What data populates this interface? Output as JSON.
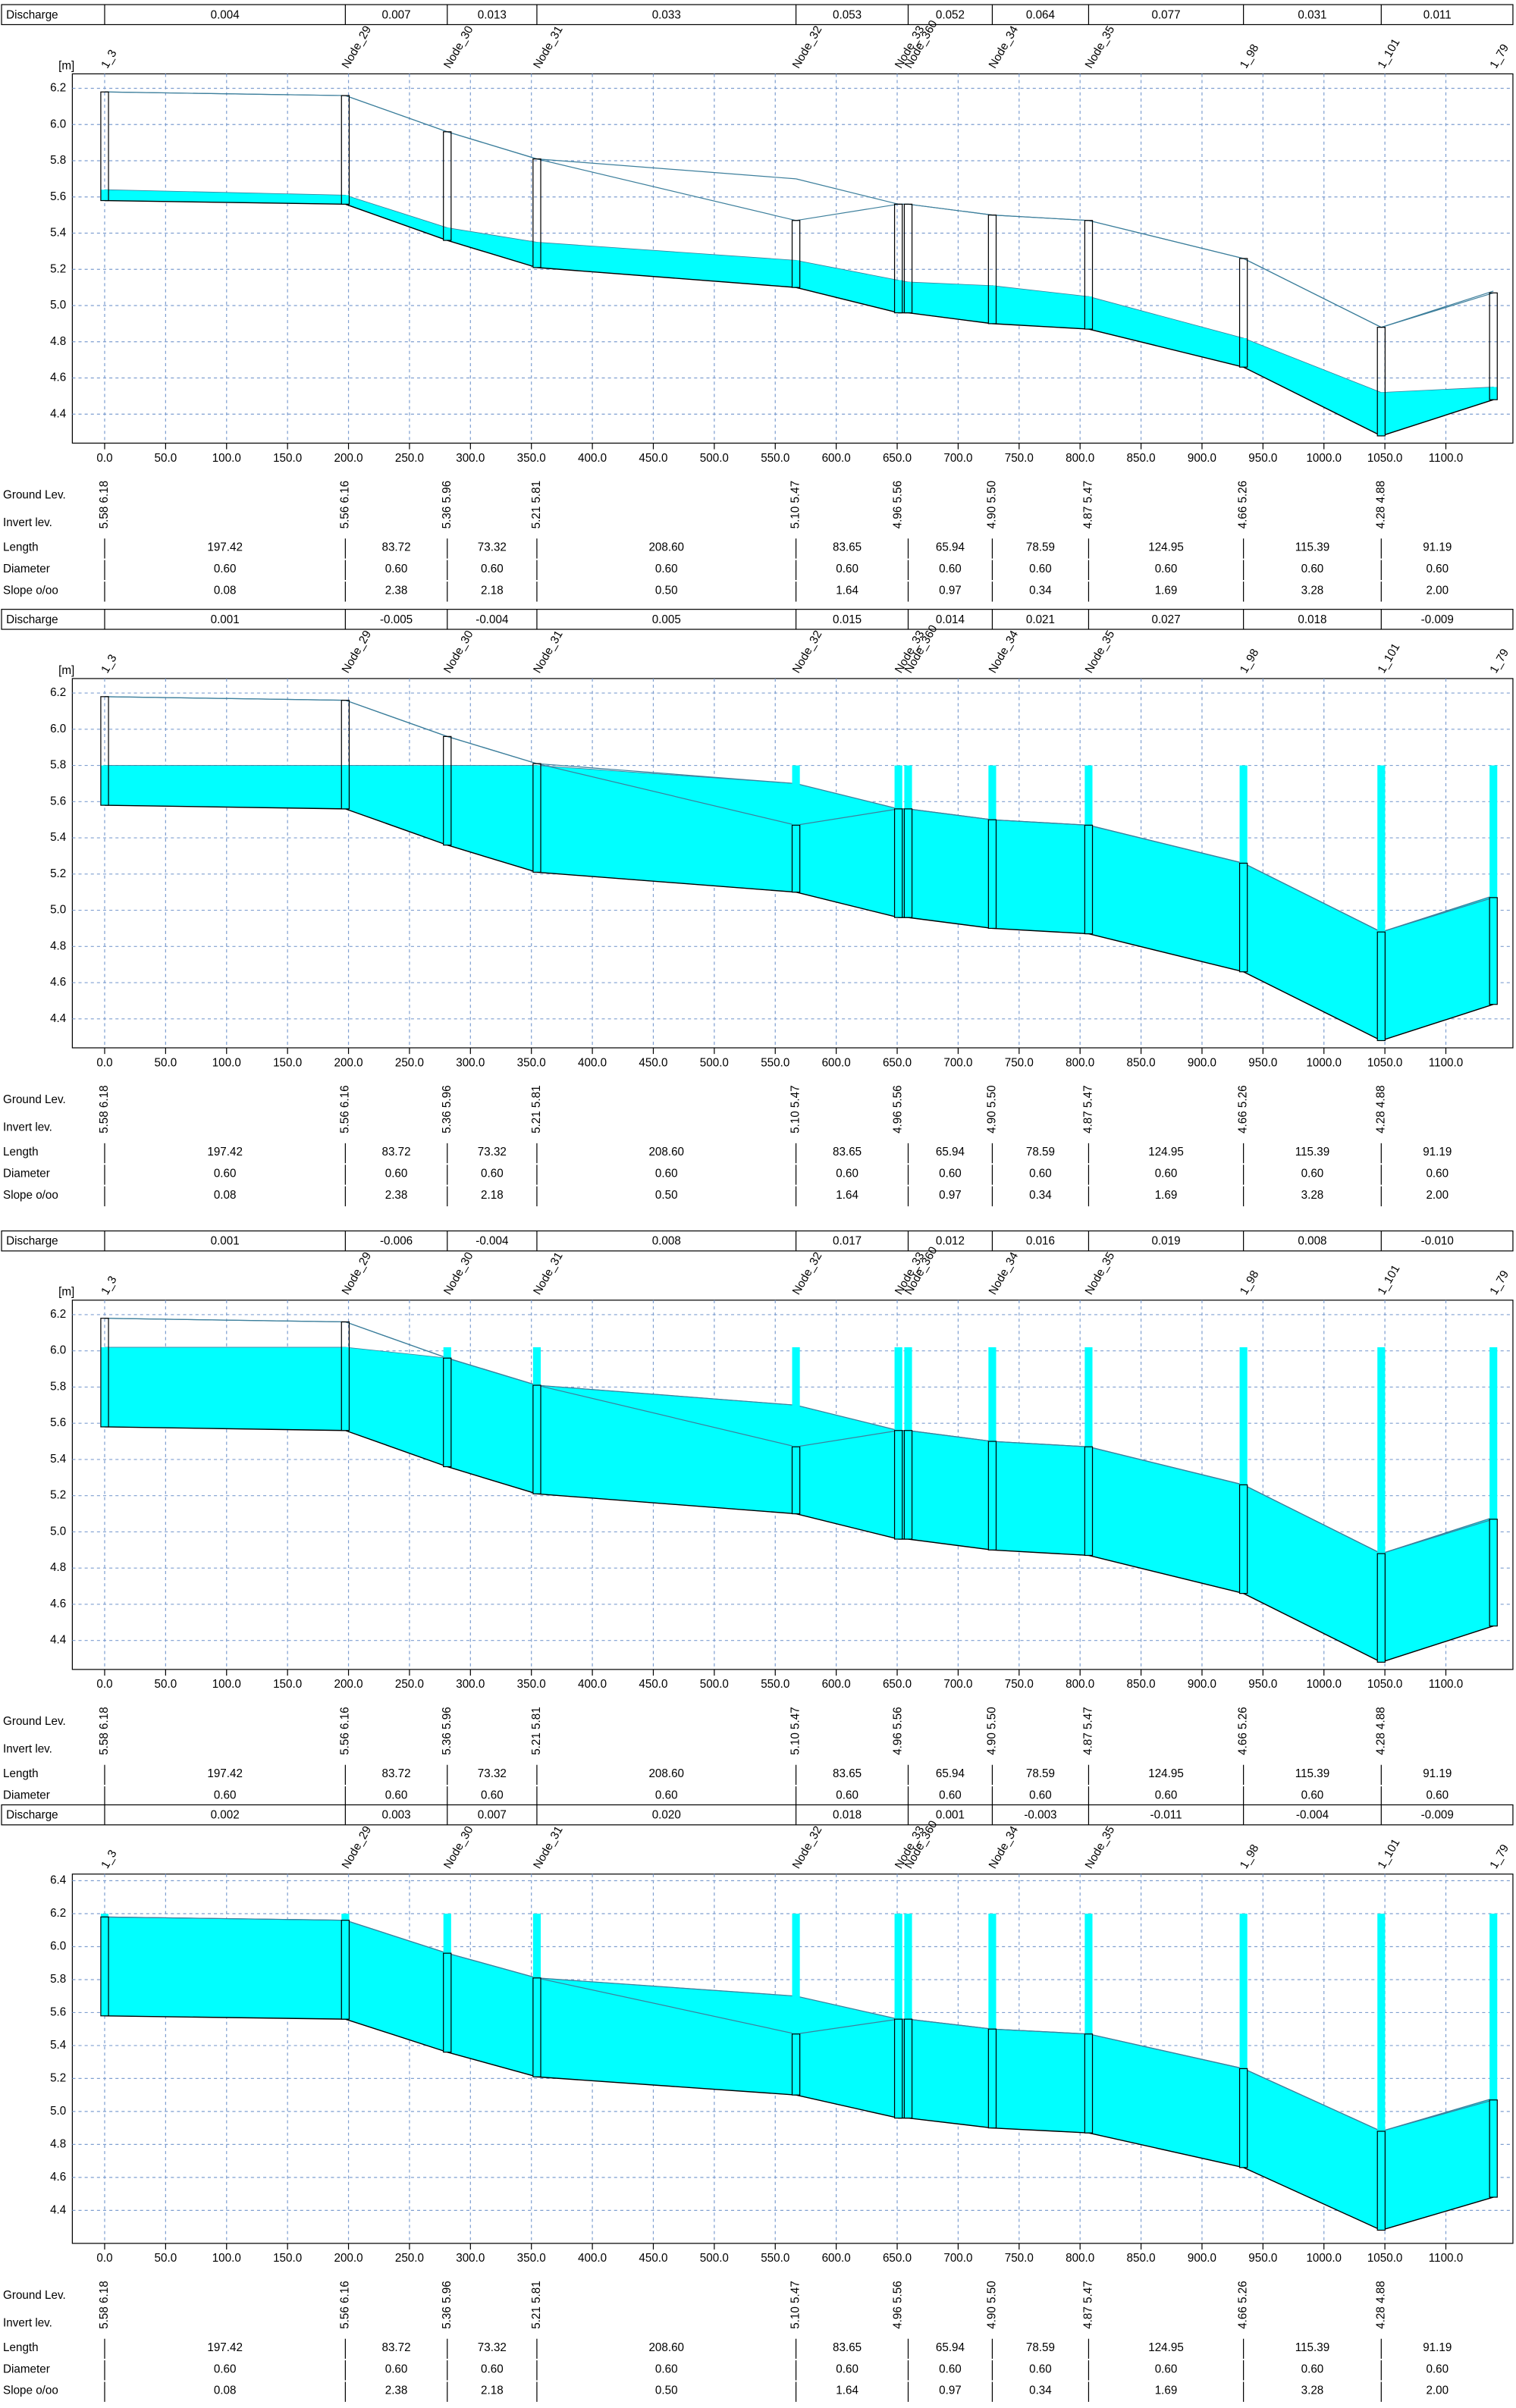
{
  "profile": {
    "row_labels": {
      "discharge": "Discharge",
      "ground": "Ground Lev.",
      "invert": "Invert lev.",
      "length": "Length",
      "diameter": "Diameter",
      "slope": "Slope o/oo"
    },
    "colors": {
      "water": "#00ffff",
      "pipe": "#3d7f9c",
      "grid": "#7f9fd0"
    },
    "xlim": [
      -26.5,
      1155
    ],
    "xticks": [
      {
        "value": 0,
        "label": "0.0"
      },
      {
        "value": 50,
        "label": "50.0"
      },
      {
        "value": 100,
        "label": "100.0"
      },
      {
        "value": 150,
        "label": "150.0"
      },
      {
        "value": 200,
        "label": "200.0"
      },
      {
        "value": 250,
        "label": "250.0"
      },
      {
        "value": 300,
        "label": "300.0"
      },
      {
        "value": 350,
        "label": "350.0"
      },
      {
        "value": 400,
        "label": "400.0"
      },
      {
        "value": 450,
        "label": "450.0"
      },
      {
        "value": 500,
        "label": "500.0"
      },
      {
        "value": 550,
        "label": "550.0"
      },
      {
        "value": 600,
        "label": "600.0"
      },
      {
        "value": 650,
        "label": "650.0"
      },
      {
        "value": 700,
        "label": "700.0"
      },
      {
        "value": 750,
        "label": "750.0"
      },
      {
        "value": 800,
        "label": "800.0"
      },
      {
        "value": 850,
        "label": "850.0"
      },
      {
        "value": 900,
        "label": "900.0"
      },
      {
        "value": 950,
        "label": "950.0"
      },
      {
        "value": 1000,
        "label": "1000.0"
      },
      {
        "value": 1050,
        "label": "1050.0"
      },
      {
        "value": 1100,
        "label": "1100.0"
      }
    ],
    "nodes": [
      {
        "name": "1_3",
        "chainage": 0,
        "invert": 5.58,
        "ground": 6.18,
        "levels": "5.58 6.18"
      },
      {
        "name": "Node_29",
        "chainage": 197.4,
        "invert": 5.56,
        "ground": 6.16,
        "levels": "5.56 6.16"
      },
      {
        "name": "Node_30",
        "chainage": 281,
        "invert": 5.36,
        "ground": 5.96,
        "levels": "5.36 5.96"
      },
      {
        "name": "Node_31",
        "chainage": 354.5,
        "invert": 5.21,
        "ground": 5.81,
        "levels": "5.21 5.81"
      },
      {
        "name": "Node_32",
        "chainage": 567,
        "invert": 5.1,
        "ground": 5.47,
        "levels": "5.10 5.47"
      },
      {
        "name": "Node_33",
        "chainage": 651,
        "invert": 4.96,
        "ground": 5.56,
        "levels": "4.96 5.56"
      },
      {
        "name": "Node_360",
        "chainage": 659,
        "invert": 4.96,
        "ground": 5.56
      },
      {
        "name": "Node_34",
        "chainage": 728,
        "invert": 4.9,
        "ground": 5.5,
        "levels": "4.90 5.50"
      },
      {
        "name": "Node_35",
        "chainage": 807,
        "invert": 4.87,
        "ground": 5.47,
        "levels": "4.87 5.47"
      },
      {
        "name": "1_98",
        "chainage": 934,
        "invert": 4.66,
        "ground": 5.26,
        "levels": "4.66 5.26"
      },
      {
        "name": "1_101",
        "chainage": 1047,
        "invert": 4.28,
        "ground": 4.88,
        "levels": "4.28 4.88"
      },
      {
        "name": "1_79",
        "chainage": 1139,
        "invert": 4.48,
        "ground": 5.07
      }
    ],
    "pipes": [
      {
        "length": "197.42",
        "diameter": "0.60",
        "slope": "0.08"
      },
      {
        "length": "83.72",
        "diameter": "0.60",
        "slope": "2.38"
      },
      {
        "length": "73.32",
        "diameter": "0.60",
        "slope": "2.18"
      },
      {
        "length": "208.60",
        "diameter": "0.60",
        "slope": "0.50"
      },
      {
        "length": "83.65",
        "diameter": "0.60",
        "slope": "1.64"
      },
      {
        "length": "65.94",
        "diameter": "0.60",
        "slope": "0.97"
      },
      {
        "length": "78.59",
        "diameter": "0.60",
        "slope": "0.34"
      },
      {
        "length": "124.95",
        "diameter": "0.60",
        "slope": "1.69"
      },
      {
        "length": "115.39",
        "diameter": "0.60",
        "slope": "3.28"
      },
      {
        "length": "91.19",
        "diameter": "0.60",
        "slope": "2.00"
      }
    ],
    "panels": [
      {
        "y_unit": "[m]",
        "ylim": [
          4.24,
          6.28
        ],
        "yticks": [
          4.4,
          4.6,
          4.8,
          {
            "value": 5,
            "label": "5.0"
          },
          5.2,
          5.4,
          5.6,
          5.8,
          {
            "value": 6,
            "label": "6.0"
          },
          6.2
        ],
        "discharge": [
          "0.004",
          "0.007",
          "0.013",
          "0.033",
          "0.053",
          "0.052",
          "0.064",
          "0.077",
          "0.031",
          "0.011"
        ],
        "water_level": [
          5.64,
          5.61,
          5.43,
          5.35,
          5.25,
          5.14,
          5.13,
          5.11,
          5.05,
          4.82,
          4.52,
          4.55
        ],
        "rows": [
          "length",
          "diameter",
          "slope"
        ]
      },
      {
        "y_unit": "[m]",
        "ylim": [
          4.24,
          6.28
        ],
        "yticks": [
          4.4,
          4.6,
          4.8,
          {
            "value": 5,
            "label": "5.0"
          },
          5.2,
          5.4,
          5.6,
          5.8,
          {
            "value": 6,
            "label": "6.0"
          },
          6.2
        ],
        "discharge": [
          "0.001",
          "-0.005",
          "-0.004",
          "0.005",
          "0.015",
          "0.014",
          "0.021",
          "0.027",
          "0.018",
          "-0.009"
        ],
        "water_level": [
          5.8,
          5.8,
          5.8,
          5.8,
          5.8,
          5.8,
          5.8,
          5.8,
          5.8,
          5.8,
          5.8,
          5.8
        ],
        "rows": [
          "length",
          "diameter",
          "slope"
        ]
      },
      {
        "y_unit": "[m]",
        "ylim": [
          4.24,
          6.28
        ],
        "yticks": [
          4.4,
          4.6,
          4.8,
          {
            "value": 5,
            "label": "5.0"
          },
          5.2,
          5.4,
          5.6,
          5.8,
          {
            "value": 6,
            "label": "6.0"
          },
          6.2
        ],
        "discharge": [
          "0.001",
          "-0.006",
          "-0.004",
          "0.008",
          "0.017",
          "0.012",
          "0.016",
          "0.019",
          "0.008",
          "-0.010"
        ],
        "water_level": [
          6.02,
          6.02,
          6.02,
          6.02,
          6.02,
          6.02,
          6.02,
          6.02,
          6.02,
          6.02,
          6.02,
          6.02
        ],
        "rows": [
          "length",
          "diameter"
        ]
      },
      {
        "ylim": [
          4.2,
          6.44
        ],
        "yticks": [
          4.4,
          4.6,
          4.8,
          {
            "value": 5,
            "label": "5.0"
          },
          5.2,
          5.4,
          5.6,
          5.8,
          {
            "value": 6,
            "label": "6.0"
          },
          6.2,
          6.4
        ],
        "discharge": [
          "0.002",
          "0.003",
          "0.007",
          "0.020",
          "0.018",
          "0.001",
          "-0.003",
          "-0.011",
          "-0.004",
          "-0.009"
        ],
        "water_level": [
          6.2,
          6.2,
          6.2,
          6.2,
          6.2,
          6.2,
          6.2,
          6.2,
          6.2,
          6.2,
          6.2,
          6.2
        ],
        "rows": [
          "length",
          "diameter",
          "slope"
        ]
      }
    ]
  }
}
